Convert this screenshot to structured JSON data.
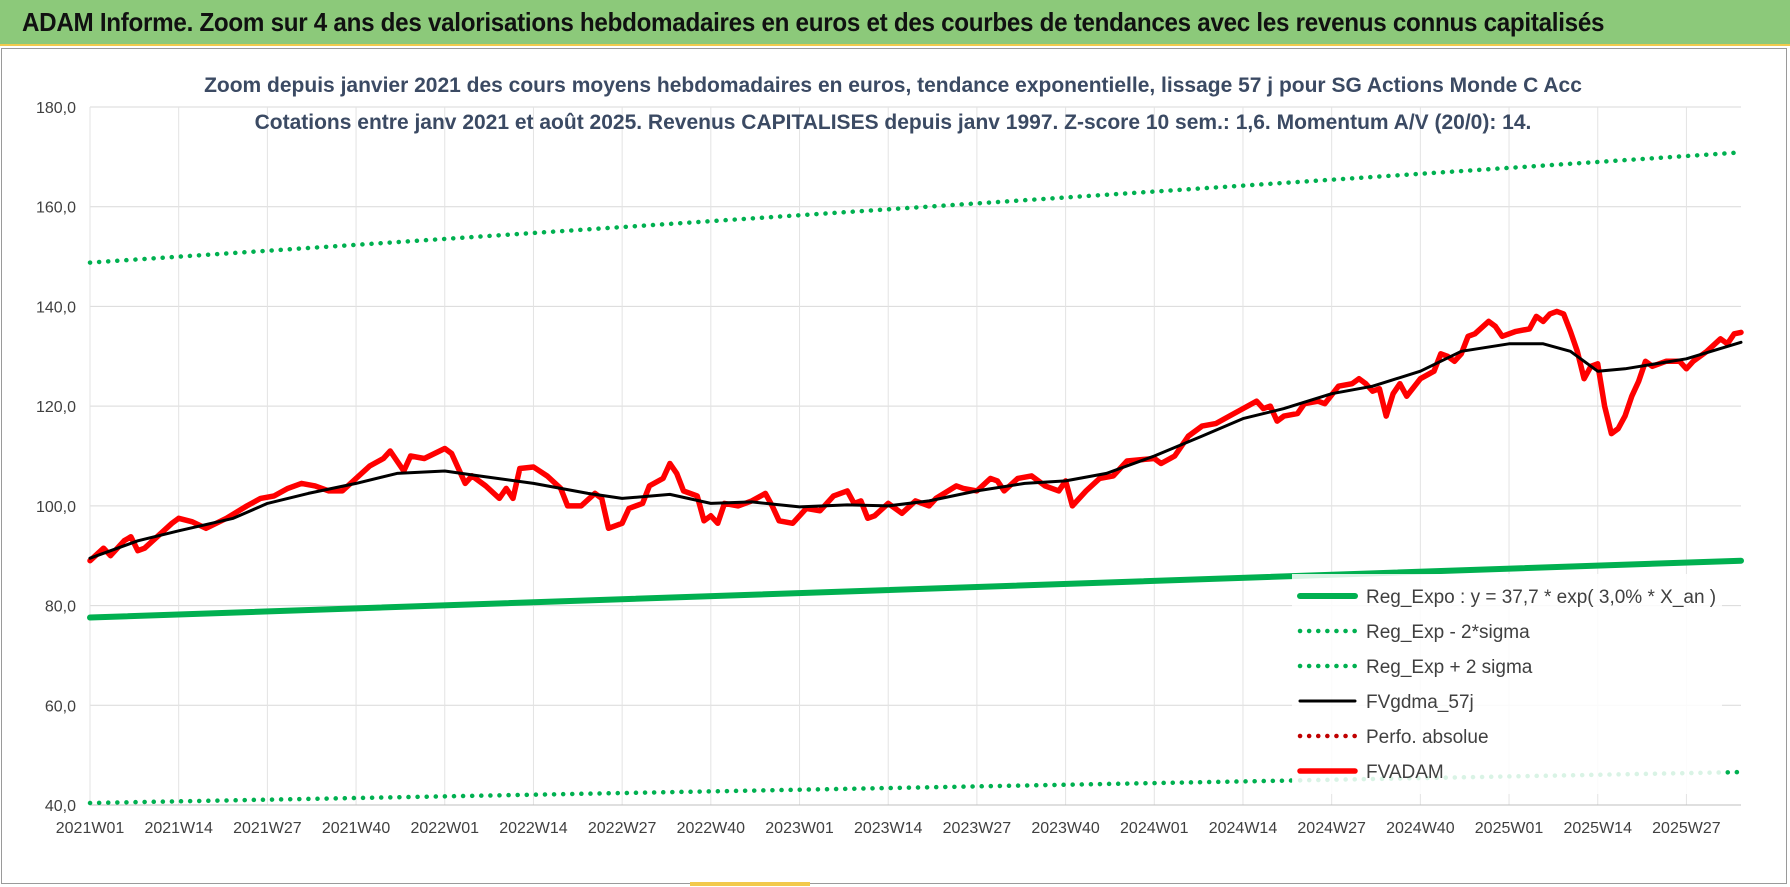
{
  "banner": {
    "title": "ADAM Informe. Zoom sur 4 ans des valorisations hebdomadaires en euros et des courbes de tendances avec les revenus connus capitalisés"
  },
  "chart_data": {
    "type": "line",
    "title": "Zoom depuis janvier 2021 des cours moyens hebdomadaires en euros, tendance exponentielle, lissage 57 j pour SG Actions Monde C Acc",
    "subtitle": "Cotations entre janv 2021 et août 2025. Revenus CAPITALISES depuis janv 1997. Z-score 10 sem.: 1,6. Momentum A/V (20/0): 14.",
    "xlabel": "",
    "ylabel": "",
    "ylim": [
      40,
      180
    ],
    "y_ticks": [
      "40,0",
      "60,0",
      "80,0",
      "100,0",
      "120,0",
      "140,0",
      "160,0",
      "180,0"
    ],
    "x_ticks": [
      "2021W01",
      "2021W14",
      "2021W27",
      "2021W40",
      "2022W01",
      "2022W14",
      "2022W27",
      "2022W40",
      "2023W01",
      "2023W14",
      "2023W27",
      "2023W40",
      "2024W01",
      "2024W14",
      "2024W27",
      "2024W40",
      "2025W01",
      "2025W14",
      "2025W27"
    ],
    "grid": true,
    "legend_position": "bottom-right",
    "x_range": [
      "2021W01",
      "2025W35"
    ],
    "series": [
      {
        "name": "Reg_Expo : y = 37,7 * exp( 3,0% *  X_an )",
        "style": "solid-thick",
        "color": "#00b050",
        "points": [
          [
            "2021W01",
            77.6
          ],
          [
            "2025W35",
            89.0
          ]
        ]
      },
      {
        "name": "Reg_Exp - 2*sigma",
        "style": "dotted",
        "color": "#00b050",
        "points": [
          [
            "2021W01",
            40.4
          ],
          [
            "2025W35",
            46.6
          ]
        ]
      },
      {
        "name": "Reg_Exp + 2 sigma",
        "style": "dotted",
        "color": "#00b050",
        "points": [
          [
            "2021W01",
            148.8
          ],
          [
            "2025W35",
            170.9
          ]
        ]
      },
      {
        "name": "FVgdma_57j",
        "style": "solid",
        "color": "#000000",
        "points": [
          [
            "2021W01",
            89.5
          ],
          [
            "2021W08",
            93.0
          ],
          [
            "2021W14",
            95.0
          ],
          [
            "2021W22",
            97.5
          ],
          [
            "2021W27",
            100.5
          ],
          [
            "2021W33",
            102.5
          ],
          [
            "2021W40",
            104.5
          ],
          [
            "2021W46",
            106.5
          ],
          [
            "2022W01",
            107.0
          ],
          [
            "2022W06",
            106.0
          ],
          [
            "2022W14",
            104.5
          ],
          [
            "2022W22",
            102.5
          ],
          [
            "2022W27",
            101.5
          ],
          [
            "2022W34",
            102.3
          ],
          [
            "2022W40",
            100.5
          ],
          [
            "2022W46",
            100.8
          ],
          [
            "2023W01",
            99.8
          ],
          [
            "2023W08",
            100.2
          ],
          [
            "2023W14",
            100.0
          ],
          [
            "2023W20",
            101.0
          ],
          [
            "2023W27",
            103.0
          ],
          [
            "2023W34",
            104.5
          ],
          [
            "2023W40",
            105.0
          ],
          [
            "2023W46",
            106.5
          ],
          [
            "2024W01",
            110.0
          ],
          [
            "2024W08",
            114.0
          ],
          [
            "2024W14",
            117.5
          ],
          [
            "2024W20",
            119.5
          ],
          [
            "2024W27",
            122.5
          ],
          [
            "2024W33",
            124.0
          ],
          [
            "2024W40",
            127.0
          ],
          [
            "2024W46",
            131.0
          ],
          [
            "2025W01",
            132.5
          ],
          [
            "2025W06",
            132.5
          ],
          [
            "2025W10",
            131.0
          ],
          [
            "2025W14",
            127.0
          ],
          [
            "2025W18",
            127.5
          ],
          [
            "2025W27",
            129.5
          ],
          [
            "2025W35",
            132.8
          ]
        ]
      },
      {
        "name": "Perfo. absolue",
        "style": "dotted",
        "color": "#c00000",
        "points": []
      },
      {
        "name": "FVADAM",
        "style": "solid-thick",
        "color": "#ff0000",
        "points": [
          [
            "2021W01",
            89.0
          ],
          [
            "2021W03",
            91.5
          ],
          [
            "2021W04",
            90.0
          ],
          [
            "2021W06",
            93.0
          ],
          [
            "2021W07",
            93.8
          ],
          [
            "2021W08",
            91.0
          ],
          [
            "2021W09",
            91.5
          ],
          [
            "2021W11",
            94.0
          ],
          [
            "2021W13",
            96.5
          ],
          [
            "2021W14",
            97.5
          ],
          [
            "2021W16",
            96.8
          ],
          [
            "2021W18",
            95.5
          ],
          [
            "2021W21",
            97.5
          ],
          [
            "2021W24",
            100.0
          ],
          [
            "2021W26",
            101.5
          ],
          [
            "2021W28",
            102.0
          ],
          [
            "2021W30",
            103.5
          ],
          [
            "2021W32",
            104.5
          ],
          [
            "2021W34",
            104.0
          ],
          [
            "2021W36",
            103.0
          ],
          [
            "2021W38",
            103.0
          ],
          [
            "2021W40",
            105.5
          ],
          [
            "2021W42",
            108.0
          ],
          [
            "2021W44",
            109.5
          ],
          [
            "2021W45",
            111.0
          ],
          [
            "2021W46",
            109.0
          ],
          [
            "2021W47",
            107.0
          ],
          [
            "2021W48",
            110.0
          ],
          [
            "2021W50",
            109.5
          ],
          [
            "2022W01",
            111.5
          ],
          [
            "2022W02",
            110.5
          ],
          [
            "2022W03",
            107.5
          ],
          [
            "2022W04",
            104.5
          ],
          [
            "2022W05",
            106.0
          ],
          [
            "2022W07",
            104.0
          ],
          [
            "2022W09",
            101.5
          ],
          [
            "2022W10",
            103.5
          ],
          [
            "2022W11",
            101.5
          ],
          [
            "2022W12",
            107.5
          ],
          [
            "2022W14",
            107.8
          ],
          [
            "2022W16",
            106.0
          ],
          [
            "2022W18",
            103.5
          ],
          [
            "2022W19",
            100.0
          ],
          [
            "2022W21",
            100.0
          ],
          [
            "2022W23",
            102.5
          ],
          [
            "2022W24",
            101.5
          ],
          [
            "2022W25",
            95.5
          ],
          [
            "2022W27",
            96.5
          ],
          [
            "2022W28",
            99.5
          ],
          [
            "2022W30",
            100.5
          ],
          [
            "2022W31",
            104.0
          ],
          [
            "2022W33",
            105.5
          ],
          [
            "2022W34",
            108.5
          ],
          [
            "2022W35",
            106.5
          ],
          [
            "2022W36",
            103.0
          ],
          [
            "2022W38",
            102.0
          ],
          [
            "2022W39",
            97.0
          ],
          [
            "2022W40",
            98.0
          ],
          [
            "2022W41",
            96.5
          ],
          [
            "2022W42",
            100.5
          ],
          [
            "2022W44",
            100.0
          ],
          [
            "2022W46",
            101.0
          ],
          [
            "2022W48",
            102.5
          ],
          [
            "2022W49",
            100.0
          ],
          [
            "2022W50",
            97.0
          ],
          [
            "2022W52",
            96.5
          ],
          [
            "2023W02",
            99.5
          ],
          [
            "2023W04",
            99.0
          ],
          [
            "2023W06",
            102.0
          ],
          [
            "2023W08",
            103.0
          ],
          [
            "2023W09",
            100.5
          ],
          [
            "2023W10",
            101.0
          ],
          [
            "2023W11",
            97.5
          ],
          [
            "2023W12",
            98.0
          ],
          [
            "2023W14",
            100.5
          ],
          [
            "2023W16",
            98.5
          ],
          [
            "2023W18",
            101.0
          ],
          [
            "2023W20",
            100.0
          ],
          [
            "2023W21",
            101.5
          ],
          [
            "2023W24",
            104.0
          ],
          [
            "2023W25",
            103.5
          ],
          [
            "2023W27",
            103.0
          ],
          [
            "2023W29",
            105.5
          ],
          [
            "2023W30",
            105.0
          ],
          [
            "2023W31",
            103.0
          ],
          [
            "2023W33",
            105.5
          ],
          [
            "2023W35",
            106.0
          ],
          [
            "2023W37",
            104.0
          ],
          [
            "2023W39",
            103.0
          ],
          [
            "2023W40",
            105.0
          ],
          [
            "2023W41",
            100.0
          ],
          [
            "2023W43",
            103.0
          ],
          [
            "2023W45",
            105.5
          ],
          [
            "2023W47",
            106.0
          ],
          [
            "2023W49",
            109.0
          ],
          [
            "2024W01",
            109.5
          ],
          [
            "2024W02",
            108.5
          ],
          [
            "2024W04",
            110.0
          ],
          [
            "2024W06",
            114.0
          ],
          [
            "2024W08",
            116.0
          ],
          [
            "2024W10",
            116.5
          ],
          [
            "2024W12",
            118.0
          ],
          [
            "2024W14",
            119.5
          ],
          [
            "2024W16",
            121.0
          ],
          [
            "2024W17",
            119.5
          ],
          [
            "2024W18",
            120.0
          ],
          [
            "2024W19",
            117.0
          ],
          [
            "2024W20",
            118.0
          ],
          [
            "2024W22",
            118.5
          ],
          [
            "2024W23",
            120.5
          ],
          [
            "2024W25",
            121.0
          ],
          [
            "2024W26",
            120.5
          ],
          [
            "2024W28",
            124.0
          ],
          [
            "2024W30",
            124.5
          ],
          [
            "2024W31",
            125.5
          ],
          [
            "2024W32",
            124.5
          ],
          [
            "2024W33",
            123.0
          ],
          [
            "2024W34",
            123.5
          ],
          [
            "2024W35",
            118.0
          ],
          [
            "2024W36",
            122.5
          ],
          [
            "2024W37",
            124.5
          ],
          [
            "2024W38",
            122.0
          ],
          [
            "2024W40",
            125.5
          ],
          [
            "2024W42",
            127.0
          ],
          [
            "2024W43",
            130.5
          ],
          [
            "2024W44",
            130.0
          ],
          [
            "2024W45",
            129.0
          ],
          [
            "2024W46",
            130.5
          ],
          [
            "2024W47",
            134.0
          ],
          [
            "2024W48",
            134.5
          ],
          [
            "2024W50",
            137.0
          ],
          [
            "2024W51",
            136.0
          ],
          [
            "2024W52",
            134.0
          ],
          [
            "2025W02",
            135.0
          ],
          [
            "2025W04",
            135.5
          ],
          [
            "2025W05",
            138.0
          ],
          [
            "2025W06",
            137.0
          ],
          [
            "2025W07",
            138.5
          ],
          [
            "2025W08",
            139.0
          ],
          [
            "2025W09",
            138.5
          ],
          [
            "2025W10",
            135.0
          ],
          [
            "2025W11",
            131.0
          ],
          [
            "2025W12",
            125.5
          ],
          [
            "2025W13",
            128.0
          ],
          [
            "2025W14",
            128.5
          ],
          [
            "2025W15",
            120.0
          ],
          [
            "2025W16",
            114.5
          ],
          [
            "2025W17",
            115.5
          ],
          [
            "2025W18",
            118.0
          ],
          [
            "2025W19",
            122.0
          ],
          [
            "2025W20",
            125.0
          ],
          [
            "2025W21",
            129.0
          ],
          [
            "2025W22",
            128.0
          ],
          [
            "2025W24",
            129.0
          ],
          [
            "2025W26",
            129.0
          ],
          [
            "2025W27",
            127.5
          ],
          [
            "2025W28",
            129.0
          ],
          [
            "2025W30",
            131.0
          ],
          [
            "2025W32",
            133.5
          ],
          [
            "2025W33",
            132.5
          ],
          [
            "2025W34",
            134.5
          ],
          [
            "2025W35",
            134.8
          ]
        ]
      }
    ]
  }
}
